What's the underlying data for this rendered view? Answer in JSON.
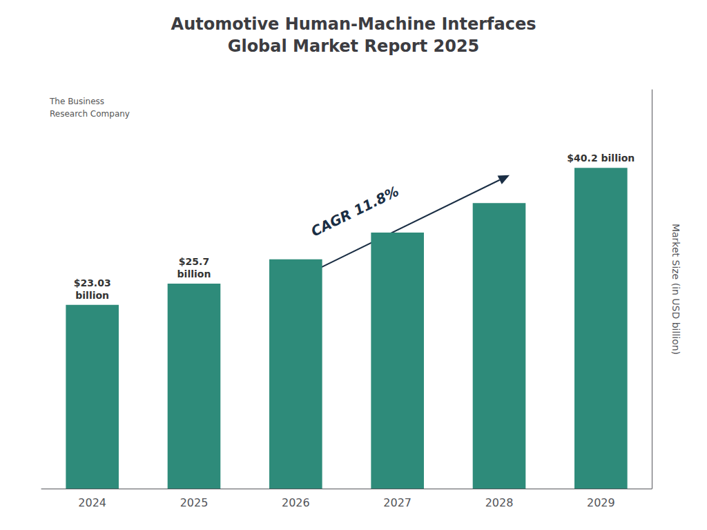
{
  "chart_data": {
    "type": "bar",
    "title": "Automotive Human-Machine Interfaces\nGlobal Market Report 2025",
    "categories": [
      "2024",
      "2025",
      "2026",
      "2027",
      "2028",
      "2029"
    ],
    "values": [
      23.03,
      25.7,
      28.75,
      32.1,
      35.8,
      40.2
    ],
    "value_labels": [
      "$23.03\nbillion",
      "$25.7\nbillion",
      null,
      null,
      null,
      "$40.2 billion"
    ],
    "color": "#2e8b7a",
    "ylabel": "Market Size (in USD billion)",
    "ylim": [
      0,
      50
    ],
    "grid": false,
    "tick_labels": "x",
    "annotations": [
      "CAGR 11.8%",
      "The Business\nResearch Company"
    ]
  }
}
